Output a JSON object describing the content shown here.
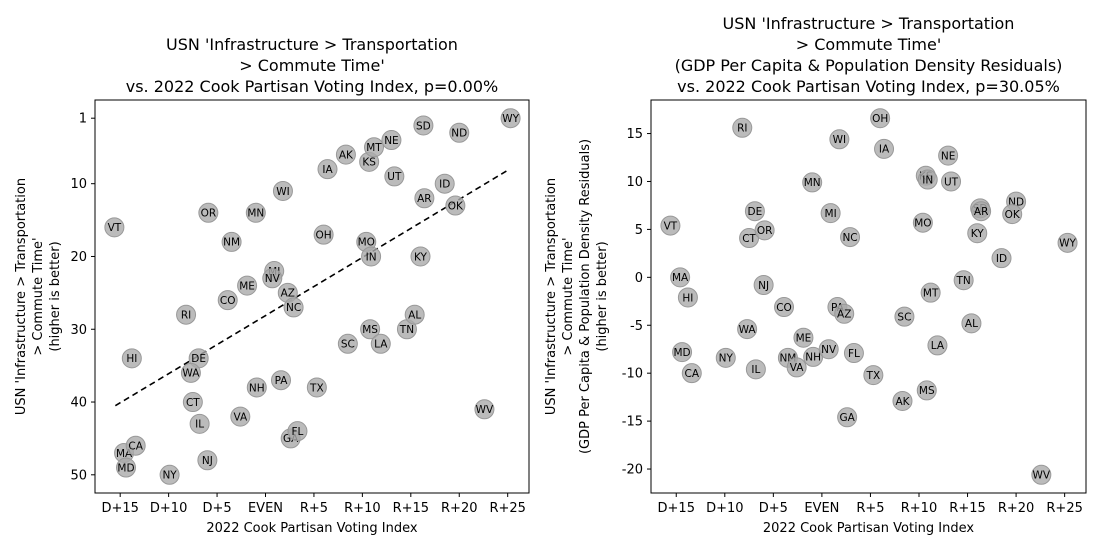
{
  "chart_data": [
    {
      "type": "scatter",
      "title_lines": [
        "USN 'Infrastructure > Transportation",
        "> Commute Time'",
        "vs. 2022 Cook Partisan Voting Index, p=0.00%"
      ],
      "xlabel": "2022 Cook Partisan Voting Index",
      "ylabel_lines": [
        "USN 'Infrastructure > Transportation",
        "> Commute Time'",
        "(higher is better)"
      ],
      "x_ticks": [
        {
          "value": -15,
          "label": "D+15"
        },
        {
          "value": -10,
          "label": "D+10"
        },
        {
          "value": -5,
          "label": "D+5"
        },
        {
          "value": 0,
          "label": "EVEN"
        },
        {
          "value": 5,
          "label": "R+5"
        },
        {
          "value": 10,
          "label": "R+10"
        },
        {
          "value": 15,
          "label": "R+15"
        },
        {
          "value": 20,
          "label": "R+20"
        },
        {
          "value": 25,
          "label": "R+25"
        }
      ],
      "y_ticks": [
        1,
        10,
        20,
        30,
        40,
        50
      ],
      "xlim": [
        -17.6,
        27.2
      ],
      "ylim": [
        52.5,
        -1.5
      ],
      "y_inverted": true,
      "trendline": {
        "x": [
          -15.5,
          25.2
        ],
        "y": [
          40.5,
          8.0
        ]
      },
      "points": [
        {
          "label": "VT",
          "x": -15.6,
          "y": 16
        },
        {
          "label": "HI",
          "x": -13.8,
          "y": 34
        },
        {
          "label": "MA",
          "x": -14.6,
          "y": 47
        },
        {
          "label": "CA",
          "x": -13.4,
          "y": 46
        },
        {
          "label": "MD",
          "x": -14.4,
          "y": 49
        },
        {
          "label": "NY",
          "x": -9.9,
          "y": 50
        },
        {
          "label": "RI",
          "x": -8.2,
          "y": 28
        },
        {
          "label": "DE",
          "x": -6.9,
          "y": 34
        },
        {
          "label": "WA",
          "x": -7.7,
          "y": 36
        },
        {
          "label": "CT",
          "x": -7.5,
          "y": 40
        },
        {
          "label": "IL",
          "x": -6.8,
          "y": 43
        },
        {
          "label": "NJ",
          "x": -6.0,
          "y": 48
        },
        {
          "label": "OR",
          "x": -5.9,
          "y": 14
        },
        {
          "label": "NM",
          "x": -3.5,
          "y": 18
        },
        {
          "label": "CO",
          "x": -3.9,
          "y": 26
        },
        {
          "label": "ME",
          "x": -1.9,
          "y": 24
        },
        {
          "label": "VA",
          "x": -2.6,
          "y": 42
        },
        {
          "label": "MN",
          "x": -1.0,
          "y": 14
        },
        {
          "label": "NH",
          "x": -0.9,
          "y": 38
        },
        {
          "label": "MI",
          "x": 0.9,
          "y": 22
        },
        {
          "label": "NV",
          "x": 0.7,
          "y": 23
        },
        {
          "label": "WI",
          "x": 1.8,
          "y": 11
        },
        {
          "label": "PA",
          "x": 1.6,
          "y": 37
        },
        {
          "label": "AZ",
          "x": 2.3,
          "y": 25
        },
        {
          "label": "NC",
          "x": 2.9,
          "y": 27
        },
        {
          "label": "GA",
          "x": 2.6,
          "y": 45
        },
        {
          "label": "FL",
          "x": 3.3,
          "y": 44
        },
        {
          "label": "OH",
          "x": 6.0,
          "y": 17
        },
        {
          "label": "IA",
          "x": 6.4,
          "y": 8
        },
        {
          "label": "AK",
          "x": 8.3,
          "y": 6
        },
        {
          "label": "TX",
          "x": 5.3,
          "y": 38
        },
        {
          "label": "SC",
          "x": 8.5,
          "y": 32
        },
        {
          "label": "KS",
          "x": 10.7,
          "y": 7
        },
        {
          "label": "MT",
          "x": 11.2,
          "y": 5
        },
        {
          "label": "NE",
          "x": 13.0,
          "y": 4
        },
        {
          "label": "UT",
          "x": 13.3,
          "y": 9
        },
        {
          "label": "MO",
          "x": 10.4,
          "y": 18
        },
        {
          "label": "IN",
          "x": 10.9,
          "y": 20
        },
        {
          "label": "MS",
          "x": 10.8,
          "y": 30
        },
        {
          "label": "LA",
          "x": 11.9,
          "y": 32
        },
        {
          "label": "TN",
          "x": 14.6,
          "y": 30
        },
        {
          "label": "AL",
          "x": 15.4,
          "y": 28
        },
        {
          "label": "SD",
          "x": 16.3,
          "y": 2
        },
        {
          "label": "KY",
          "x": 16.0,
          "y": 20
        },
        {
          "label": "AR",
          "x": 16.4,
          "y": 12
        },
        {
          "label": "ID",
          "x": 18.5,
          "y": 10
        },
        {
          "label": "ND",
          "x": 20.0,
          "y": 3
        },
        {
          "label": "OK",
          "x": 19.6,
          "y": 13
        },
        {
          "label": "WV",
          "x": 22.6,
          "y": 41
        },
        {
          "label": "WY",
          "x": 25.3,
          "y": 1
        }
      ]
    },
    {
      "type": "scatter",
      "title_lines": [
        "USN 'Infrastructure > Transportation",
        "> Commute Time'",
        "(GDP Per Capita & Population Density Residuals)",
        "vs. 2022 Cook Partisan Voting Index, p=30.05%"
      ],
      "xlabel": "2022 Cook Partisan Voting Index",
      "ylabel_lines": [
        "USN 'Infrastructure > Transportation",
        "> Commute Time'",
        "(GDP Per Capita & Population Density Residuals)",
        "(higher is better)"
      ],
      "x_ticks": [
        {
          "value": -15,
          "label": "D+15"
        },
        {
          "value": -10,
          "label": "D+10"
        },
        {
          "value": -5,
          "label": "D+5"
        },
        {
          "value": 0,
          "label": "EVEN"
        },
        {
          "value": 5,
          "label": "R+5"
        },
        {
          "value": 10,
          "label": "R+10"
        },
        {
          "value": 15,
          "label": "R+15"
        },
        {
          "value": 20,
          "label": "R+20"
        },
        {
          "value": 25,
          "label": "R+25"
        }
      ],
      "y_ticks": [
        15,
        10,
        5,
        0,
        -5,
        -10,
        -15,
        -20
      ],
      "xlim": [
        -17.6,
        27.2
      ],
      "ylim": [
        -22.5,
        18.5
      ],
      "y_inverted": false,
      "points": [
        {
          "label": "VT",
          "x": -15.6,
          "y": 5.4
        },
        {
          "label": "MA",
          "x": -14.6,
          "y": 0.0
        },
        {
          "label": "HI",
          "x": -13.8,
          "y": -2.1
        },
        {
          "label": "MD",
          "x": -14.4,
          "y": -7.8
        },
        {
          "label": "CA",
          "x": -13.4,
          "y": -10.0
        },
        {
          "label": "NY",
          "x": -9.9,
          "y": -8.4
        },
        {
          "label": "RI",
          "x": -8.2,
          "y": 15.6
        },
        {
          "label": "DE",
          "x": -6.9,
          "y": 6.9
        },
        {
          "label": "CT",
          "x": -7.5,
          "y": 4.1
        },
        {
          "label": "OR",
          "x": -5.9,
          "y": 4.9
        },
        {
          "label": "NJ",
          "x": -6.0,
          "y": -0.8
        },
        {
          "label": "WA",
          "x": -7.7,
          "y": -5.4
        },
        {
          "label": "IL",
          "x": -6.8,
          "y": -9.6
        },
        {
          "label": "CO",
          "x": -3.9,
          "y": -3.1
        },
        {
          "label": "NM",
          "x": -3.5,
          "y": -8.4
        },
        {
          "label": "VA",
          "x": -2.6,
          "y": -9.4
        },
        {
          "label": "ME",
          "x": -1.9,
          "y": -6.3
        },
        {
          "label": "MN",
          "x": -1.0,
          "y": 9.9
        },
        {
          "label": "NH",
          "x": -0.9,
          "y": -8.3
        },
        {
          "label": "NV",
          "x": 0.7,
          "y": -7.5
        },
        {
          "label": "MI",
          "x": 0.9,
          "y": 6.7
        },
        {
          "label": "WI",
          "x": 1.8,
          "y": 14.4
        },
        {
          "label": "PA",
          "x": 1.6,
          "y": -3.1
        },
        {
          "label": "AZ",
          "x": 2.3,
          "y": -3.8
        },
        {
          "label": "NC",
          "x": 2.9,
          "y": 4.2
        },
        {
          "label": "FL",
          "x": 3.3,
          "y": -7.9
        },
        {
          "label": "GA",
          "x": 2.6,
          "y": -14.6
        },
        {
          "label": "OH",
          "x": 6.0,
          "y": 16.6
        },
        {
          "label": "IA",
          "x": 6.4,
          "y": 13.4
        },
        {
          "label": "TX",
          "x": 5.3,
          "y": -10.2
        },
        {
          "label": "SC",
          "x": 8.5,
          "y": -4.1
        },
        {
          "label": "AK",
          "x": 8.3,
          "y": -12.9
        },
        {
          "label": "KS",
          "x": 10.7,
          "y": 10.6
        },
        {
          "label": "IN",
          "x": 10.9,
          "y": 10.2
        },
        {
          "label": "MO",
          "x": 10.4,
          "y": 5.7
        },
        {
          "label": "MT",
          "x": 11.2,
          "y": -1.6
        },
        {
          "label": "MS",
          "x": 10.8,
          "y": -11.8
        },
        {
          "label": "LA",
          "x": 11.9,
          "y": -7.1
        },
        {
          "label": "NE",
          "x": 13.0,
          "y": 12.7
        },
        {
          "label": "UT",
          "x": 13.3,
          "y": 10.0
        },
        {
          "label": "TN",
          "x": 14.6,
          "y": -0.3
        },
        {
          "label": "AL",
          "x": 15.4,
          "y": -4.8
        },
        {
          "label": "SD",
          "x": 16.3,
          "y": 7.2
        },
        {
          "label": "AR",
          "x": 16.4,
          "y": 6.9
        },
        {
          "label": "KY",
          "x": 16.0,
          "y": 4.6
        },
        {
          "label": "ID",
          "x": 18.5,
          "y": 2.0
        },
        {
          "label": "ND",
          "x": 20.0,
          "y": 7.9
        },
        {
          "label": "OK",
          "x": 19.6,
          "y": 6.6
        },
        {
          "label": "WV",
          "x": 22.6,
          "y": -20.6
        },
        {
          "label": "WY",
          "x": 25.3,
          "y": 3.6
        }
      ]
    }
  ]
}
